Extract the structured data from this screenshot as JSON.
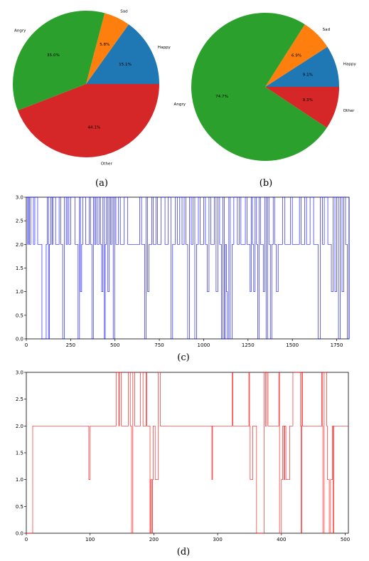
{
  "colors": {
    "happy": "#1f77b4",
    "sad": "#ff7f0e",
    "angry": "#2ca02c",
    "other": "#d62728",
    "line_c": "#0000ff",
    "line_d": "#ff0000"
  },
  "chart_data": [
    {
      "id": "a",
      "type": "pie",
      "caption": "(a)",
      "slices": [
        {
          "label": "Happy",
          "value": 15.1,
          "pct_text": "15.1%"
        },
        {
          "label": "Sad",
          "value": 5.8,
          "pct_text": "5.8%"
        },
        {
          "label": "Angry",
          "value": 35.0,
          "pct_text": "35.0%"
        },
        {
          "label": "Other",
          "value": 44.1,
          "pct_text": "44.1%"
        }
      ]
    },
    {
      "id": "b",
      "type": "pie",
      "caption": "(b)",
      "slices": [
        {
          "label": "Happy",
          "value": 9.1,
          "pct_text": "9.1%"
        },
        {
          "label": "Sad",
          "value": 6.9,
          "pct_text": "6.9%"
        },
        {
          "label": "Angry",
          "value": 74.7,
          "pct_text": "74.7%"
        },
        {
          "label": "Other",
          "value": 9.3,
          "pct_text": "9.3%"
        }
      ]
    },
    {
      "id": "c",
      "type": "line",
      "caption": "(c)",
      "xlim": [
        0,
        1820
      ],
      "ylim": [
        0,
        3
      ],
      "xticks": [
        0,
        250,
        500,
        750,
        1000,
        1250,
        1500,
        1750
      ],
      "yticks": [
        "0.0",
        "0.5",
        "1.0",
        "1.5",
        "2.0",
        "2.5",
        "3.0"
      ],
      "series": [
        {
          "x": [
            0,
            8,
            12,
            18,
            25,
            32,
            40,
            48,
            56,
            64,
            75,
            88,
            100,
            112,
            118,
            125,
            130,
            138,
            145,
            150,
            158,
            165,
            175,
            185,
            195,
            205,
            215,
            225,
            232,
            240,
            250,
            262,
            275,
            285,
            292,
            300,
            305,
            312,
            318,
            325,
            335,
            345,
            355,
            362,
            370,
            378,
            385,
            392,
            400,
            410,
            418,
            425,
            432,
            440,
            445,
            452,
            460,
            468,
            475,
            482,
            490,
            498,
            505,
            512,
            520,
            530,
            540,
            552,
            562,
            572,
            585,
            598,
            610,
            622,
            640,
            650,
            660,
            668,
            676,
            684,
            692,
            700,
            708,
            716,
            724,
            732,
            740,
            748,
            760,
            772,
            782,
            790,
            800,
            815,
            825,
            840,
            852,
            865,
            878,
            890,
            900,
            910,
            920,
            930,
            940,
            950,
            960,
            970,
            980,
            990,
            1000,
            1010,
            1020,
            1030,
            1040,
            1050,
            1060,
            1070,
            1080,
            1090,
            1100,
            1108,
            1116,
            1122,
            1128,
            1134,
            1142,
            1150,
            1160,
            1170,
            1180,
            1190,
            1200,
            1210,
            1222,
            1235,
            1245,
            1255,
            1262,
            1268,
            1275,
            1282,
            1290,
            1298,
            1305,
            1312,
            1320,
            1328,
            1336,
            1344,
            1352,
            1360,
            1368,
            1376,
            1384,
            1392,
            1400,
            1410,
            1420,
            1432,
            1445,
            1458,
            1470,
            1480,
            1490,
            1500,
            1510,
            1520,
            1530,
            1540,
            1550,
            1560,
            1570,
            1580,
            1590,
            1600,
            1610,
            1620,
            1632,
            1645,
            1658,
            1670,
            1680,
            1690,
            1700,
            1710,
            1720,
            1730,
            1740,
            1750,
            1760,
            1770,
            1780,
            1790,
            1800,
            1810,
            1820
          ],
          "y": [
            3,
            2,
            3,
            2,
            3,
            3,
            2,
            3,
            3,
            2,
            2,
            0,
            0,
            2,
            3,
            0,
            2,
            3,
            2,
            3,
            3,
            2,
            2,
            3,
            2,
            0,
            3,
            2,
            3,
            2,
            3,
            3,
            2,
            2,
            0,
            3,
            1,
            2,
            3,
            3,
            2,
            2,
            3,
            2,
            0,
            3,
            2,
            3,
            2,
            3,
            2,
            1,
            3,
            0,
            2,
            3,
            1,
            3,
            2,
            3,
            0,
            3,
            2,
            2,
            3,
            2,
            2,
            3,
            3,
            2,
            2,
            2,
            2,
            2,
            3,
            2,
            2,
            0,
            3,
            1,
            2,
            2,
            3,
            2,
            2,
            3,
            2,
            2,
            3,
            3,
            2,
            2,
            3,
            0,
            2,
            3,
            2,
            3,
            2,
            3,
            2,
            0,
            3,
            2,
            3,
            0,
            2,
            3,
            2,
            2,
            3,
            2,
            1,
            3,
            2,
            2,
            3,
            1,
            3,
            2,
            0,
            3,
            0,
            2,
            1,
            0,
            3,
            0,
            2,
            3,
            3,
            2,
            3,
            2,
            2,
            3,
            2,
            2,
            1,
            3,
            2,
            1,
            3,
            2,
            0,
            3,
            2,
            2,
            1,
            3,
            0,
            3,
            2,
            0,
            2,
            3,
            2,
            1,
            2,
            2,
            3,
            2,
            2,
            2,
            3,
            2,
            2,
            2,
            2,
            3,
            2,
            2,
            3,
            2,
            2,
            3,
            3,
            2,
            2,
            0,
            3,
            2,
            3,
            3,
            2,
            2,
            1,
            3,
            1,
            3,
            0,
            3,
            1,
            3,
            2,
            0,
            3
          ]
        }
      ]
    },
    {
      "id": "d",
      "type": "line",
      "caption": "(d)",
      "xlim": [
        0,
        505
      ],
      "ylim": [
        0,
        3
      ],
      "xticks": [
        0,
        100,
        200,
        300,
        400,
        500
      ],
      "yticks": [
        "0.0",
        "0.5",
        "1.0",
        "1.5",
        "2.0",
        "2.5",
        "3.0"
      ],
      "series": [
        {
          "x": [
            0,
            8,
            10,
            97,
            98,
            99,
            100,
            140,
            141,
            143,
            145,
            146,
            149,
            156,
            160,
            162,
            163,
            165,
            167,
            168,
            170,
            178,
            179,
            182,
            183,
            186,
            188,
            189,
            193,
            194,
            195,
            196,
            197,
            198,
            199,
            201,
            202,
            206,
            207,
            208,
            210,
            211,
            290,
            291,
            292,
            322,
            323,
            324,
            348,
            349,
            350,
            351,
            355,
            360,
            361,
            372,
            373,
            375,
            377,
            378,
            379,
            388,
            395,
            396,
            397,
            399,
            400,
            402,
            404,
            405,
            407,
            412,
            413,
            417,
            418,
            424,
            430,
            431,
            432,
            433,
            450,
            462,
            463,
            464,
            465,
            466,
            467,
            470,
            471,
            472,
            474,
            475,
            477,
            478,
            480,
            481,
            482,
            483,
            485,
            505
          ],
          "y": [
            0,
            0,
            2,
            2,
            1,
            1,
            2,
            2,
            3,
            3,
            2,
            3,
            2,
            2,
            3,
            3,
            2,
            0,
            3,
            3,
            2,
            2,
            3,
            3,
            2,
            2,
            3,
            2,
            2,
            0,
            1,
            1,
            0,
            1,
            2,
            2,
            1,
            1,
            3,
            3,
            2,
            2,
            2,
            1,
            2,
            2,
            3,
            2,
            2,
            3,
            2,
            1,
            2,
            2,
            0,
            0,
            3,
            2,
            3,
            3,
            2,
            2,
            2,
            3,
            0,
            0,
            1,
            2,
            1,
            2,
            1,
            1,
            2,
            2,
            3,
            3,
            2,
            0,
            3,
            2,
            2,
            2,
            3,
            2,
            0,
            0,
            3,
            3,
            2,
            1,
            1,
            0,
            1,
            1,
            2,
            0,
            2,
            2,
            2,
            2
          ]
        }
      ]
    }
  ]
}
